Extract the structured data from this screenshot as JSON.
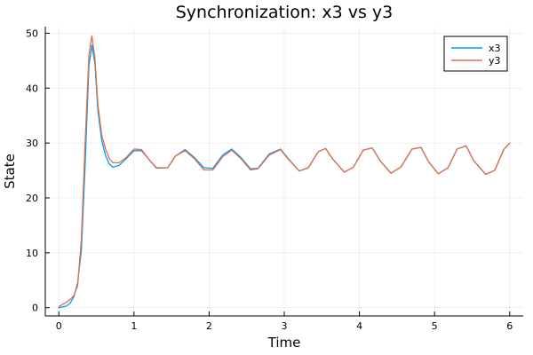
{
  "chart_data": {
    "type": "line",
    "title": "Synchronization: x3 vs y3",
    "xlabel": "Time",
    "ylabel": "State",
    "xlim": [
      -0.18,
      6.18
    ],
    "ylim": [
      -1.5,
      51.2
    ],
    "xticks": [
      0,
      1,
      2,
      3,
      4,
      5,
      6
    ],
    "yticks": [
      0,
      10,
      20,
      30,
      40,
      50
    ],
    "grid": true,
    "legend_position": "top-right",
    "series": [
      {
        "name": "x3",
        "color": "#009AFA",
        "points": [
          [
            0.0,
            0.0
          ],
          [
            0.1,
            0.3
          ],
          [
            0.15,
            0.8
          ],
          [
            0.2,
            2.0
          ],
          [
            0.25,
            4.5
          ],
          [
            0.3,
            10.5
          ],
          [
            0.35,
            26.0
          ],
          [
            0.4,
            44.0
          ],
          [
            0.44,
            47.8
          ],
          [
            0.48,
            44.5
          ],
          [
            0.52,
            36.0
          ],
          [
            0.57,
            30.5
          ],
          [
            0.62,
            27.8
          ],
          [
            0.67,
            26.2
          ],
          [
            0.72,
            25.6
          ],
          [
            0.8,
            25.9
          ],
          [
            0.9,
            27.2
          ],
          [
            1.0,
            28.6
          ],
          [
            1.1,
            28.6
          ],
          [
            1.2,
            27.0
          ],
          [
            1.3,
            25.4
          ],
          [
            1.45,
            25.5
          ],
          [
            1.55,
            27.6
          ],
          [
            1.68,
            28.8
          ],
          [
            1.8,
            27.4
          ],
          [
            1.93,
            25.5
          ],
          [
            2.05,
            25.4
          ],
          [
            2.18,
            27.8
          ],
          [
            2.3,
            28.9
          ],
          [
            2.42,
            27.4
          ],
          [
            2.55,
            25.3
          ],
          [
            2.65,
            25.4
          ],
          [
            2.8,
            28.0
          ],
          [
            2.95,
            28.9
          ],
          [
            3.05,
            27.2
          ],
          [
            3.2,
            24.9
          ],
          [
            3.32,
            25.5
          ],
          [
            3.45,
            28.4
          ],
          [
            3.55,
            29.0
          ],
          [
            3.65,
            27.0
          ],
          [
            3.8,
            24.7
          ],
          [
            3.92,
            25.6
          ],
          [
            4.05,
            28.7
          ],
          [
            4.17,
            29.1
          ],
          [
            4.28,
            26.7
          ],
          [
            4.42,
            24.5
          ],
          [
            4.55,
            25.6
          ],
          [
            4.7,
            28.9
          ],
          [
            4.82,
            29.2
          ],
          [
            4.92,
            26.6
          ],
          [
            5.05,
            24.4
          ],
          [
            5.18,
            25.5
          ],
          [
            5.3,
            28.9
          ],
          [
            5.42,
            29.5
          ],
          [
            5.52,
            26.8
          ],
          [
            5.68,
            24.3
          ],
          [
            5.8,
            25.0
          ],
          [
            5.92,
            28.8
          ],
          [
            6.0,
            30.0
          ]
        ]
      },
      {
        "name": "y3",
        "color": "#E26F46",
        "points": [
          [
            0.0,
            0.2
          ],
          [
            0.1,
            1.0
          ],
          [
            0.15,
            1.5
          ],
          [
            0.2,
            2.2
          ],
          [
            0.25,
            4.0
          ],
          [
            0.3,
            12.5
          ],
          [
            0.35,
            30.0
          ],
          [
            0.4,
            46.0
          ],
          [
            0.44,
            49.5
          ],
          [
            0.48,
            45.5
          ],
          [
            0.52,
            37.0
          ],
          [
            0.57,
            31.5
          ],
          [
            0.62,
            29.0
          ],
          [
            0.67,
            27.2
          ],
          [
            0.72,
            26.4
          ],
          [
            0.8,
            26.4
          ],
          [
            0.9,
            27.4
          ],
          [
            1.0,
            28.9
          ],
          [
            1.1,
            28.8
          ],
          [
            1.2,
            27.0
          ],
          [
            1.3,
            25.5
          ],
          [
            1.45,
            25.5
          ],
          [
            1.55,
            27.6
          ],
          [
            1.68,
            28.6
          ],
          [
            1.8,
            27.2
          ],
          [
            1.93,
            25.1
          ],
          [
            2.05,
            25.1
          ],
          [
            2.18,
            27.5
          ],
          [
            2.3,
            28.7
          ],
          [
            2.42,
            27.2
          ],
          [
            2.55,
            25.1
          ],
          [
            2.65,
            25.3
          ],
          [
            2.8,
            27.8
          ],
          [
            2.95,
            28.8
          ],
          [
            3.05,
            27.1
          ],
          [
            3.2,
            24.9
          ],
          [
            3.32,
            25.5
          ],
          [
            3.45,
            28.4
          ],
          [
            3.55,
            29.0
          ],
          [
            3.65,
            27.0
          ],
          [
            3.8,
            24.7
          ],
          [
            3.92,
            25.6
          ],
          [
            4.05,
            28.7
          ],
          [
            4.17,
            29.1
          ],
          [
            4.28,
            26.7
          ],
          [
            4.42,
            24.5
          ],
          [
            4.55,
            25.6
          ],
          [
            4.7,
            28.9
          ],
          [
            4.82,
            29.2
          ],
          [
            4.92,
            26.6
          ],
          [
            5.05,
            24.4
          ],
          [
            5.18,
            25.5
          ],
          [
            5.3,
            28.9
          ],
          [
            5.42,
            29.5
          ],
          [
            5.52,
            26.8
          ],
          [
            5.68,
            24.3
          ],
          [
            5.8,
            25.0
          ],
          [
            5.92,
            28.8
          ],
          [
            6.0,
            30.0
          ]
        ]
      }
    ]
  }
}
